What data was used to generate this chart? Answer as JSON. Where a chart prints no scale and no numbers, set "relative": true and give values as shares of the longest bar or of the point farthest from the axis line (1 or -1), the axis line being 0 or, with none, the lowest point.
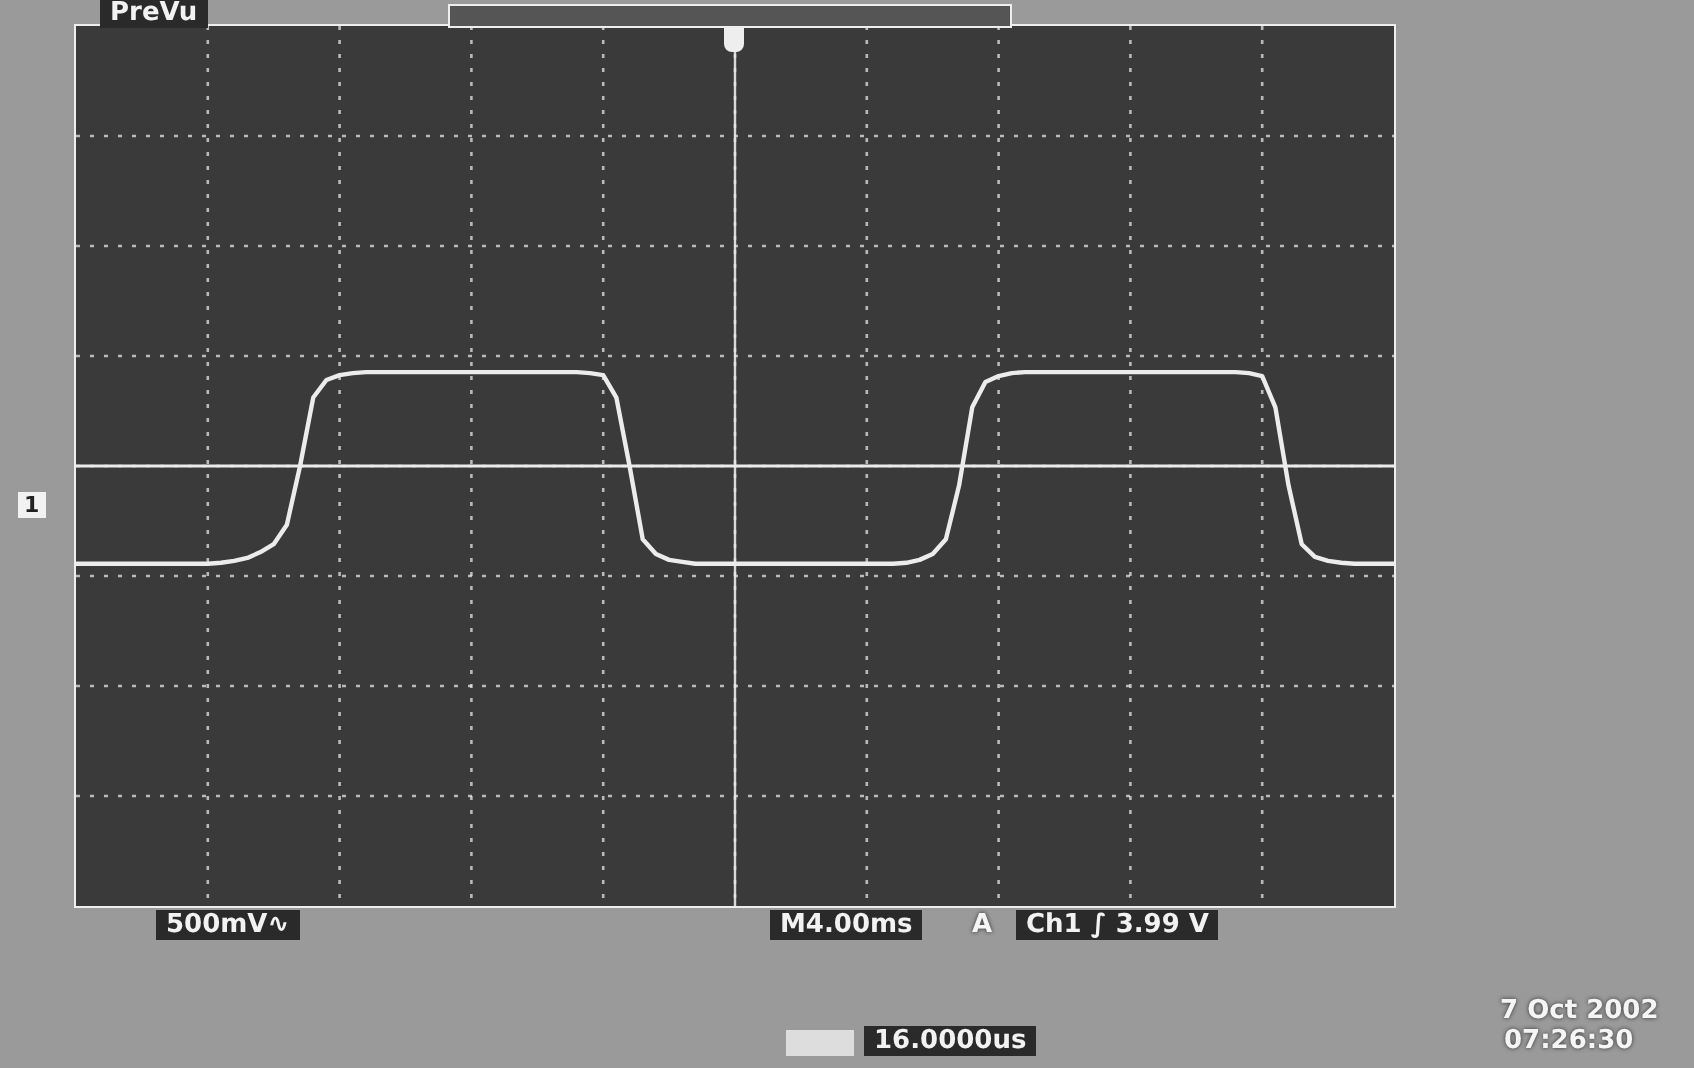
{
  "chart_data": {
    "type": "line",
    "relative": true,
    "grid": true,
    "legend": false,
    "marker": "none",
    "line_style": "solid",
    "categories": [
      null,
      null,
      null,
      null,
      null,
      null,
      null,
      null,
      null,
      null,
      null,
      null,
      null,
      null,
      null,
      null,
      null,
      null,
      null,
      null,
      null,
      null,
      null,
      null,
      null,
      null,
      null,
      null,
      null,
      null,
      null,
      null,
      null,
      null,
      null,
      null,
      null,
      null,
      null,
      null,
      null,
      null,
      null,
      null,
      null,
      null,
      null,
      null,
      null,
      null,
      null,
      null,
      null,
      null,
      null,
      null,
      null,
      null,
      null,
      null,
      null,
      null,
      null,
      null,
      null,
      null,
      null,
      null,
      null,
      null,
      null,
      null,
      null,
      null,
      null,
      null,
      null,
      null,
      null,
      null,
      null,
      null,
      null,
      null,
      null,
      null,
      null,
      null,
      null,
      null,
      null,
      null,
      null,
      null,
      null,
      null,
      null,
      null,
      null,
      null,
      null
    ],
    "series": [
      {
        "color": "#ececec",
        "values": [
          -1,
          -1,
          -1,
          -1,
          -1,
          -1,
          -1,
          -1,
          -1,
          -1,
          -1,
          -0.99,
          -0.97,
          -0.94,
          -0.88,
          -0.8,
          -0.6,
          0,
          0.7,
          0.88,
          0.93,
          0.95,
          0.96,
          0.96,
          0.96,
          0.96,
          0.96,
          0.96,
          0.96,
          0.96,
          0.96,
          0.96,
          0.96,
          0.96,
          0.96,
          0.96,
          0.96,
          0.96,
          0.96,
          0.95,
          0.93,
          0.7,
          0,
          -0.75,
          -0.9,
          -0.96,
          -0.98,
          -1,
          -1,
          -1,
          -1,
          -1,
          -1,
          -1,
          -1,
          -1,
          -1,
          -1,
          -1,
          -1,
          -1,
          -1,
          -1,
          -0.99,
          -0.96,
          -0.9,
          -0.75,
          -0.2,
          0.6,
          0.86,
          0.92,
          0.95,
          0.96,
          0.96,
          0.96,
          0.96,
          0.96,
          0.96,
          0.96,
          0.96,
          0.96,
          0.96,
          0.96,
          0.96,
          0.96,
          0.96,
          0.96,
          0.96,
          0.96,
          0.95,
          0.92,
          0.6,
          -0.2,
          -0.8,
          -0.93,
          -0.97,
          -0.99,
          -1,
          -1,
          -1,
          -1
        ]
      }
    ],
    "ref_lines": [
      {
        "axis": "y",
        "value": 0,
        "color": "#ebebeb"
      }
    ],
    "annotations": [
      "PreVu",
      "500mV∿",
      "M4.00ms",
      "A",
      "Ch1 ∫ 3.99 V",
      "16.0000us",
      "7 Oct 2002",
      "07:26:30",
      "1"
    ]
  }
}
